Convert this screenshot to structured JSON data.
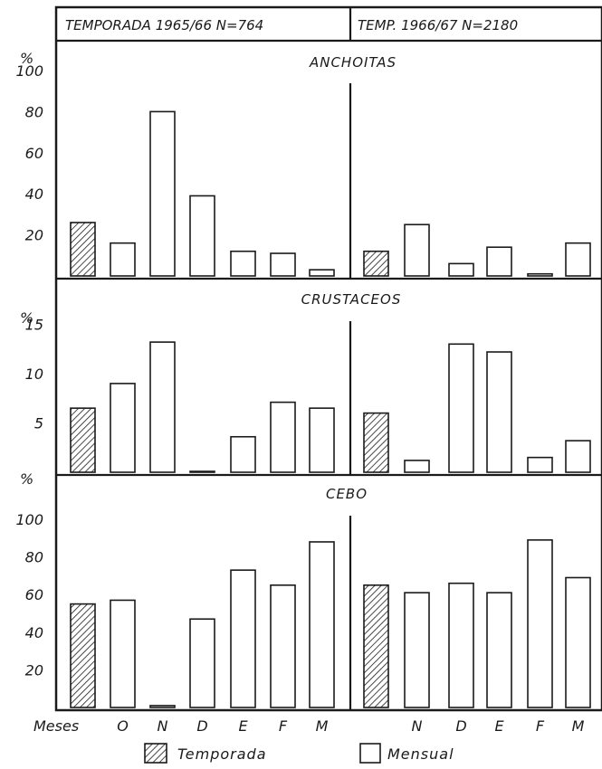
{
  "header": {
    "left": "TEMPORADA 1965/66 N=764",
    "right": "TEMP. 1966/67 N=2180"
  },
  "months_label": "Meses",
  "legend": {
    "temporada": "Temporada",
    "mensual": "Mensual"
  },
  "chart_data": [
    {
      "type": "bar",
      "title": "ANCHOITAS",
      "ylabel": "%",
      "ylim": [
        0,
        100
      ],
      "yticks": [
        "20",
        "40",
        "60",
        "80",
        "100"
      ],
      "seasons": [
        {
          "name": "TEMPORADA 1965/66 N=764",
          "categories": [
            "Temporada",
            "O",
            "N",
            "D",
            "E",
            "F",
            "M"
          ],
          "values": [
            26,
            16,
            80,
            39,
            12,
            11,
            3
          ]
        },
        {
          "name": "TEMP. 1966/67 N=2180",
          "categories": [
            "Temporada",
            "N",
            "D",
            "E",
            "F",
            "M"
          ],
          "values": [
            12,
            25,
            6,
            14,
            1,
            16
          ]
        }
      ]
    },
    {
      "type": "bar",
      "title": "CRUSTACEOS",
      "ylabel": "%",
      "ylim": [
        0,
        18
      ],
      "yticks": [
        "5",
        "10",
        "15"
      ],
      "seasons": [
        {
          "name": "TEMPORADA 1965/66 N=764",
          "categories": [
            "Temporada",
            "O",
            "N",
            "D",
            "E",
            "F",
            "M"
          ],
          "values": [
            6.5,
            9,
            13.2,
            0,
            3.6,
            7.1,
            6.5
          ]
        },
        {
          "name": "TEMP. 1966/67 N=2180",
          "categories": [
            "Temporada",
            "N",
            "D",
            "E",
            "F",
            "M"
          ],
          "values": [
            6,
            1.2,
            13,
            12.2,
            1.5,
            3.2
          ]
        }
      ]
    },
    {
      "type": "bar",
      "title": "CEBO",
      "ylabel": "%",
      "ylim": [
        0,
        100
      ],
      "yticks": [
        "20",
        "40",
        "60",
        "80",
        "100"
      ],
      "seasons": [
        {
          "name": "TEMPORADA 1965/66 N=764",
          "categories": [
            "Temporada",
            "O",
            "N",
            "D",
            "E",
            "F",
            "M"
          ],
          "values": [
            55,
            57,
            1,
            47,
            73,
            65,
            88
          ]
        },
        {
          "name": "TEMP. 1966/67 N=2180",
          "categories": [
            "Temporada",
            "N",
            "D",
            "E",
            "F",
            "M"
          ],
          "values": [
            65,
            61,
            66,
            61,
            89,
            69
          ]
        }
      ]
    }
  ]
}
